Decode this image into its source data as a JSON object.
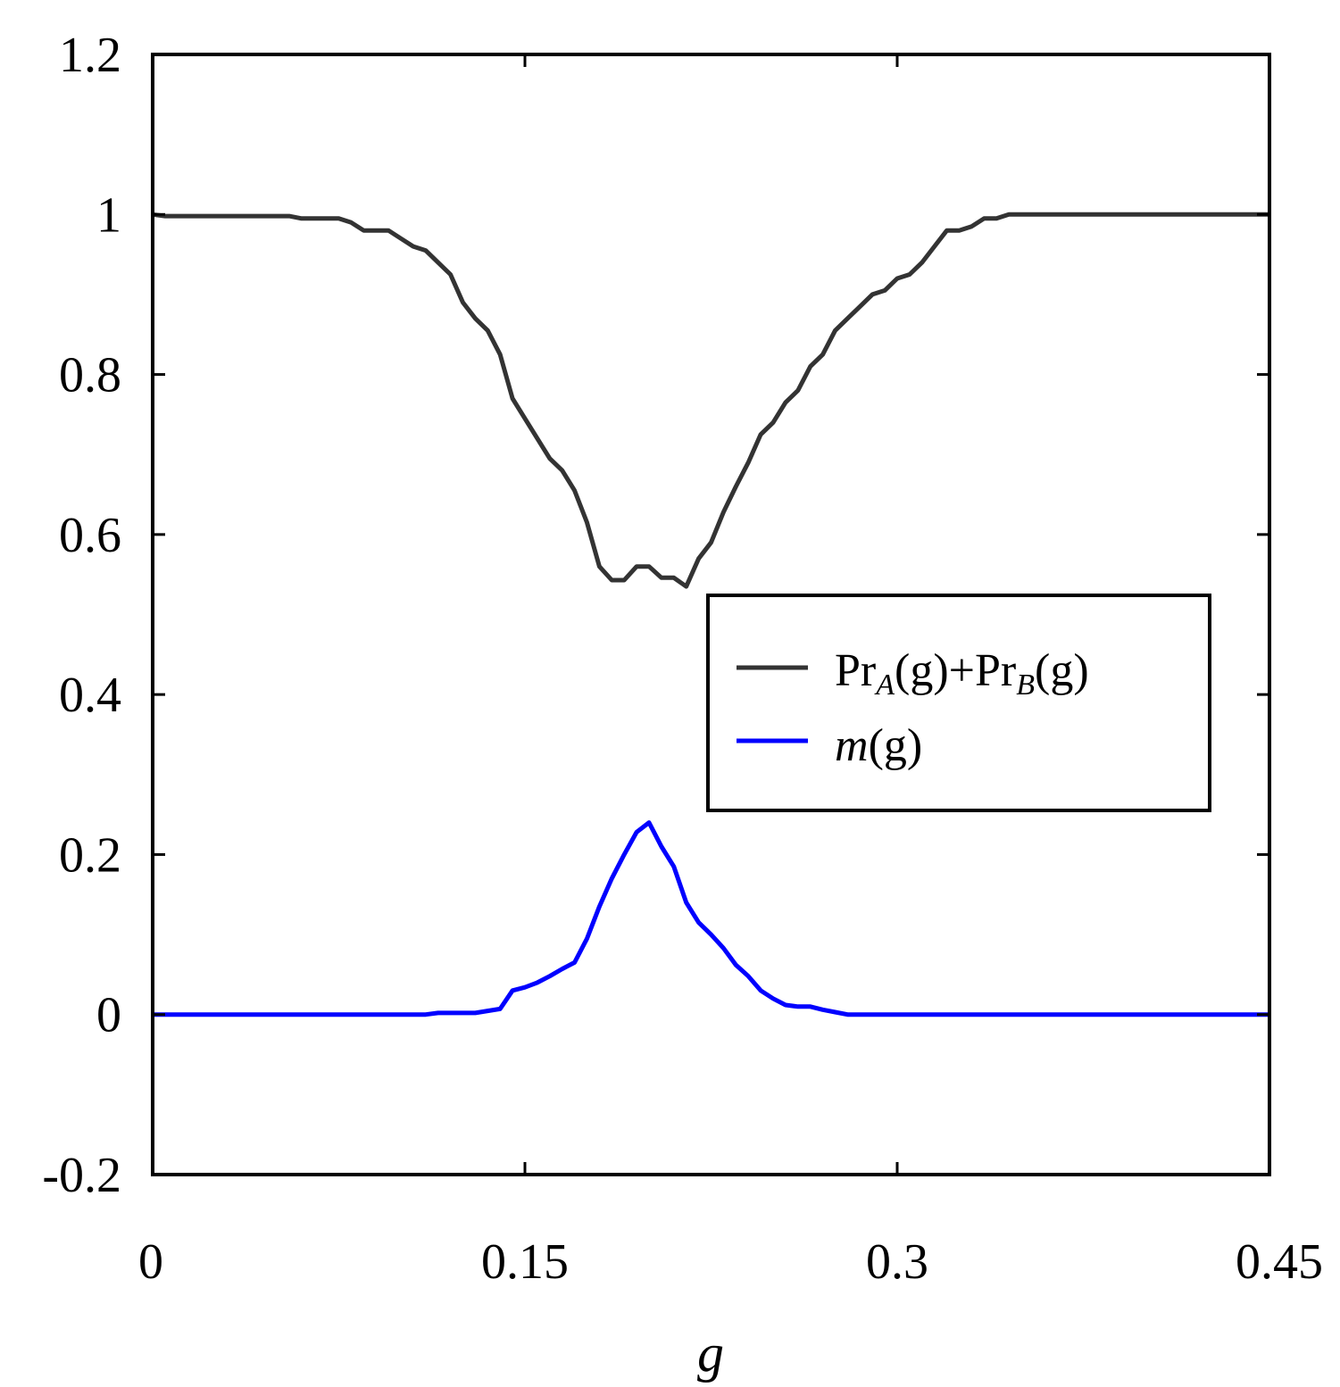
{
  "chart_data": {
    "type": "line",
    "title": "",
    "xlabel": "g",
    "ylabel": "",
    "xlim": [
      0,
      0.45
    ],
    "ylim": [
      -0.2,
      1.2
    ],
    "xticks": [
      0,
      0.15,
      0.3,
      0.45
    ],
    "xtick_labels": [
      "0",
      "0.15",
      "0.3",
      "0.45"
    ],
    "yticks": [
      -0.2,
      0,
      0.2,
      0.4,
      0.6,
      0.8,
      1.0,
      1.2
    ],
    "ytick_labels": [
      "-0.2",
      "0",
      "0.2",
      "0.4",
      "0.6",
      "0.8",
      "1",
      "1.2"
    ],
    "grid": false,
    "legend_position": "center-right",
    "series": [
      {
        "name": "PrA(g)+PrB(g)",
        "color": "#333333",
        "x": [
          0,
          0.005,
          0.01,
          0.02,
          0.03,
          0.04,
          0.055,
          0.06,
          0.07,
          0.075,
          0.08,
          0.085,
          0.09,
          0.095,
          0.1,
          0.105,
          0.11,
          0.115,
          0.12,
          0.125,
          0.13,
          0.135,
          0.14,
          0.145,
          0.15,
          0.155,
          0.16,
          0.165,
          0.17,
          0.175,
          0.18,
          0.185,
          0.19,
          0.195,
          0.2,
          0.205,
          0.21,
          0.215,
          0.22,
          0.225,
          0.23,
          0.235,
          0.24,
          0.245,
          0.25,
          0.255,
          0.26,
          0.265,
          0.27,
          0.275,
          0.28,
          0.285,
          0.29,
          0.295,
          0.3,
          0.305,
          0.31,
          0.315,
          0.32,
          0.325,
          0.33,
          0.335,
          0.34,
          0.345,
          0.35,
          0.4,
          0.45
        ],
        "values": [
          1.0,
          0.998,
          0.998,
          0.998,
          0.998,
          0.998,
          0.998,
          0.995,
          0.995,
          0.995,
          0.99,
          0.98,
          0.98,
          0.98,
          0.97,
          0.96,
          0.955,
          0.94,
          0.925,
          0.89,
          0.87,
          0.855,
          0.825,
          0.77,
          0.745,
          0.72,
          0.695,
          0.68,
          0.655,
          0.615,
          0.56,
          0.543,
          0.543,
          0.56,
          0.56,
          0.546,
          0.546,
          0.535,
          0.57,
          0.59,
          0.628,
          0.66,
          0.69,
          0.725,
          0.74,
          0.765,
          0.78,
          0.81,
          0.825,
          0.855,
          0.87,
          0.885,
          0.9,
          0.905,
          0.92,
          0.925,
          0.94,
          0.96,
          0.98,
          0.98,
          0.985,
          0.995,
          0.995,
          1.0,
          1.0,
          1.0,
          1.0
        ]
      },
      {
        "name": "m(g)",
        "color": "#0000ff",
        "x": [
          0,
          0.05,
          0.1,
          0.11,
          0.115,
          0.12,
          0.13,
          0.14,
          0.145,
          0.15,
          0.155,
          0.16,
          0.165,
          0.17,
          0.175,
          0.18,
          0.185,
          0.19,
          0.195,
          0.2,
          0.205,
          0.21,
          0.215,
          0.22,
          0.225,
          0.23,
          0.235,
          0.24,
          0.245,
          0.25,
          0.255,
          0.26,
          0.265,
          0.27,
          0.275,
          0.28,
          0.3,
          0.35,
          0.4,
          0.45
        ],
        "values": [
          0,
          0,
          0,
          0,
          0.002,
          0.002,
          0.002,
          0.007,
          0.03,
          0.034,
          0.04,
          0.048,
          0.057,
          0.065,
          0.095,
          0.135,
          0.17,
          0.2,
          0.228,
          0.24,
          0.21,
          0.185,
          0.14,
          0.115,
          0.1,
          0.083,
          0.062,
          0.048,
          0.03,
          0.02,
          0.012,
          0.01,
          0.01,
          0.006,
          0.003,
          0,
          0,
          0,
          0,
          0
        ]
      }
    ]
  },
  "legend": {
    "series1_pr1": "Pr",
    "series1_sub1": "A",
    "series1_mid": "(g)+Pr",
    "series1_sub2": "B",
    "series1_end": "(g)",
    "series2_m": "m",
    "series2_end": "(g)"
  }
}
